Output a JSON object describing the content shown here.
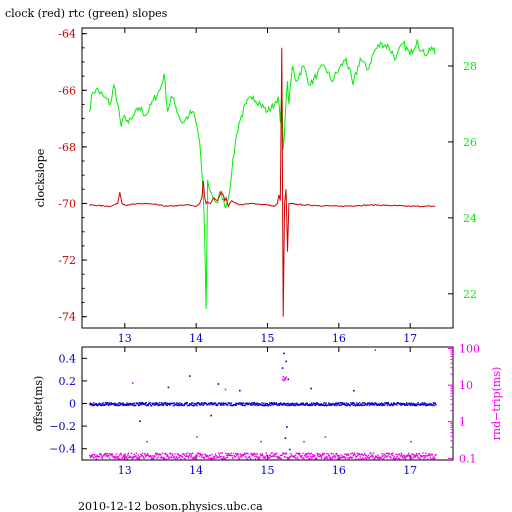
{
  "title": "clock (red) rtc (green) slopes",
  "footer": "2010-12-12 boson.physics.ubc.ca",
  "colors": {
    "red": "#cc0000",
    "green": "#00ee00",
    "blue": "#0000cc",
    "magenta": "#ee00ee",
    "axis": "#000000"
  },
  "chart_data": [
    {
      "type": "line",
      "ylabel": "clockslope",
      "y2label": "",
      "xlim": [
        12.4,
        17.6
      ],
      "ylim": [
        -74.4,
        -63.8
      ],
      "y2lim": [
        21.1,
        29.0
      ],
      "x_ticks": [
        "13",
        "14",
        "15",
        "16",
        "17"
      ],
      "y_ticks": [
        "-64",
        "-66",
        "-68",
        "-70",
        "-72",
        "-74"
      ],
      "y2_ticks": [
        "28",
        "26",
        "24",
        "22"
      ],
      "series": [
        {
          "name": "clock",
          "axis": "left",
          "x": [
            12.5,
            12.8,
            12.9,
            12.93,
            12.96,
            13.0,
            13.3,
            13.6,
            13.9,
            14.0,
            14.05,
            14.08,
            14.1,
            14.12,
            14.14,
            14.16,
            14.2,
            14.25,
            14.3,
            14.35,
            14.38,
            14.4,
            14.42,
            14.45,
            14.5,
            14.6,
            14.8,
            15.0,
            15.1,
            15.14,
            15.16,
            15.18,
            15.2,
            15.22,
            15.24,
            15.26,
            15.28,
            15.3,
            15.5,
            16.0,
            16.5,
            17.0,
            17.35
          ],
          "y": [
            -70.05,
            -70.1,
            -70.0,
            -69.6,
            -70.0,
            -70.05,
            -70.0,
            -70.1,
            -70.05,
            -70.1,
            -70.0,
            -69.8,
            -69.2,
            -69.8,
            -70.0,
            -69.95,
            -70.0,
            -69.8,
            -69.9,
            -69.6,
            -69.7,
            -69.9,
            -69.8,
            -70.1,
            -69.9,
            -70.05,
            -70.0,
            -70.05,
            -70.1,
            -70.0,
            -69.7,
            -69.9,
            -64.5,
            -74.0,
            -70.0,
            -69.5,
            -71.7,
            -70.0,
            -70.05,
            -70.1,
            -70.05,
            -70.1,
            -70.1
          ]
        },
        {
          "name": "rtc",
          "axis": "right",
          "x": [
            12.5,
            12.55,
            12.6,
            12.7,
            12.8,
            12.85,
            12.9,
            12.95,
            13.0,
            13.05,
            13.1,
            13.2,
            13.3,
            13.4,
            13.5,
            13.55,
            13.6,
            13.65,
            13.7,
            13.8,
            13.9,
            13.95,
            14.0,
            14.05,
            14.08,
            14.1,
            14.12,
            14.14,
            14.16,
            14.2,
            14.25,
            14.3,
            14.35,
            14.4,
            14.45,
            14.5,
            14.55,
            14.6,
            14.7,
            14.8,
            14.9,
            15.0,
            15.1,
            15.15,
            15.18,
            15.2,
            15.22,
            15.25,
            15.28,
            15.3,
            15.35,
            15.4,
            15.5,
            15.6,
            15.7,
            15.8,
            15.9,
            16.0,
            16.1,
            16.2,
            16.3,
            16.4,
            16.5,
            16.6,
            16.7,
            16.8,
            16.9,
            17.0,
            17.1,
            17.15,
            17.2,
            17.3,
            17.35
          ],
          "y": [
            26.8,
            27.3,
            27.4,
            27.2,
            27.0,
            27.5,
            27.0,
            26.4,
            26.7,
            26.5,
            26.6,
            26.9,
            26.7,
            27.1,
            27.4,
            27.8,
            26.8,
            27.2,
            27.0,
            26.5,
            26.7,
            26.8,
            26.5,
            26.0,
            25.2,
            24.5,
            23.5,
            21.6,
            25.0,
            24.7,
            24.5,
            24.4,
            24.7,
            24.3,
            24.5,
            25.2,
            26.0,
            26.5,
            27.0,
            27.2,
            27.0,
            26.8,
            27.0,
            27.2,
            26.5,
            27.3,
            25.8,
            26.7,
            27.6,
            27.0,
            28.0,
            27.6,
            28.0,
            27.5,
            27.8,
            28.0,
            27.6,
            27.9,
            28.2,
            27.5,
            28.2,
            27.9,
            28.4,
            28.6,
            28.5,
            28.2,
            28.6,
            28.3,
            28.7,
            28.4,
            28.3,
            28.5,
            28.3
          ]
        }
      ]
    },
    {
      "type": "scatter",
      "ylabel": "offset(ms)",
      "y2label": "rnd−trip(ms)",
      "xlim": [
        12.4,
        17.6
      ],
      "ylim": [
        -0.5,
        0.5
      ],
      "y2lim_log": [
        0.09,
        110
      ],
      "x_ticks": [
        "13",
        "14",
        "15",
        "16",
        "17"
      ],
      "y_ticks": [
        "0.4",
        "0.2",
        "0",
        "−0.2",
        "−0.4"
      ],
      "y2_ticks": [
        "100",
        "10",
        "1",
        "0.1"
      ],
      "series": [
        {
          "name": "offset",
          "axis": "left",
          "baseline_y": 0.0,
          "x_range": [
            12.5,
            17.35
          ],
          "outliers_x": [
            13.2,
            13.6,
            13.9,
            14.2,
            14.3,
            14.6,
            15.2,
            15.22,
            15.24,
            15.25,
            15.26,
            15.28,
            15.3,
            15.6,
            16.2
          ],
          "outliers_y": [
            -0.15,
            0.15,
            0.25,
            -0.1,
            0.18,
            0.12,
            0.32,
            0.45,
            -0.3,
            0.38,
            -0.2,
            0.22,
            -0.4,
            0.14,
            0.12
          ]
        },
        {
          "name": "rnd-trip",
          "axis": "right",
          "baseline_y": 0.12,
          "x_range": [
            12.5,
            17.35
          ],
          "outliers_x": [
            13.1,
            13.3,
            14.0,
            14.4,
            14.9,
            15.2,
            15.21,
            15.22,
            15.23,
            15.24,
            15.25,
            15.5,
            15.8,
            16.5,
            17.0
          ],
          "outliers_y": [
            12,
            0.3,
            0.4,
            8,
            0.3,
            15,
            18,
            14,
            16,
            15,
            17,
            0.3,
            0.4,
            95,
            0.3
          ]
        }
      ]
    }
  ]
}
